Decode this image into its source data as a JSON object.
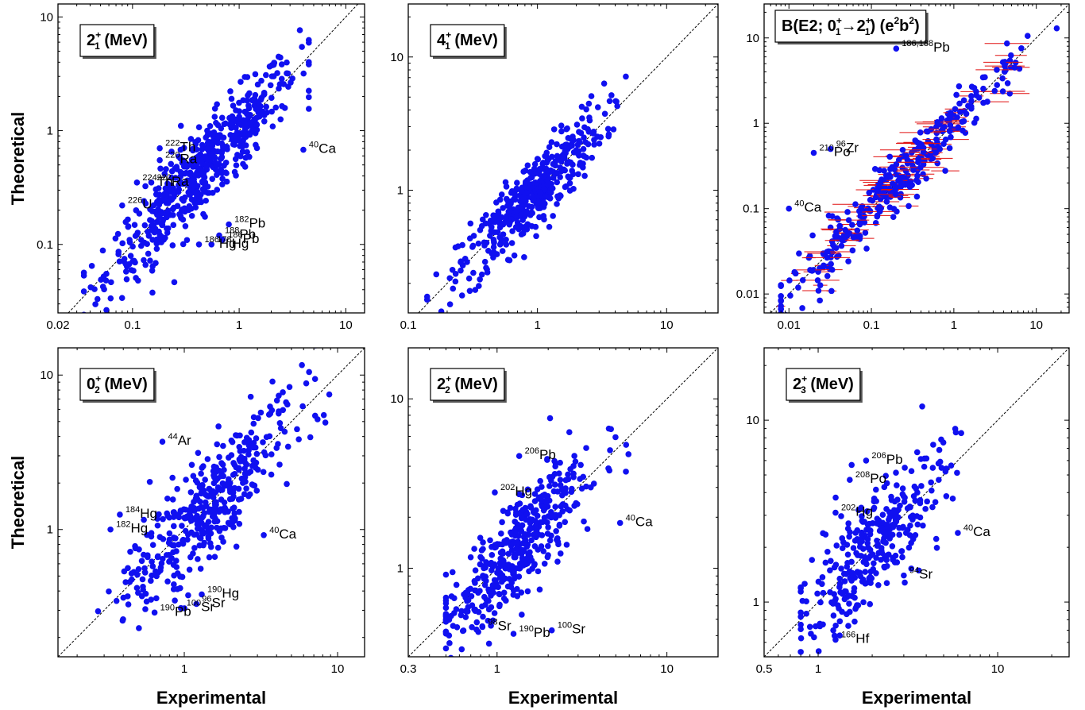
{
  "colors": {
    "point": "#1010f0",
    "error_bar": "#e01010",
    "diagonal": "#000000"
  },
  "axes": {
    "xlabel": "Experimental",
    "ylabel": "Theoretical"
  },
  "chart_data": [
    {
      "id": "p21",
      "type": "scatter",
      "title": "2_1^+ (MeV)",
      "title_parts": {
        "main": "2",
        "sup": "+",
        "sub": "1",
        "rest": " (MeV)"
      },
      "xscale": "log",
      "yscale": "log",
      "xlim": [
        0.02,
        15
      ],
      "ylim": [
        0.025,
        13
      ],
      "xticks": [
        0.02,
        0.1,
        1,
        10
      ],
      "xtick_labels": [
        "0.02",
        "0.1",
        "1",
        "10"
      ],
      "yticks": [
        0.1,
        1,
        10
      ],
      "ytick_labels": [
        "0.1",
        "1",
        "10"
      ],
      "diagonal": true,
      "annotations": [
        {
          "text": "Th",
          "mass": "222",
          "x": 0.18,
          "y": 0.7
        },
        {
          "text": "Ra",
          "mass": "220",
          "x": 0.18,
          "y": 0.55
        },
        {
          "text": "Ra",
          "mass": "222",
          "x": 0.15,
          "y": 0.35
        },
        {
          "text": "Th",
          "mass": "224",
          "x": 0.11,
          "y": 0.35
        },
        {
          "text": "U",
          "mass": "226",
          "x": 0.08,
          "y": 0.22
        },
        {
          "text": "Ca",
          "mass": "40",
          "x": 4.0,
          "y": 0.68
        },
        {
          "text": "Pb",
          "mass": "182",
          "x": 0.8,
          "y": 0.15
        },
        {
          "text": "Pb",
          "mass": "188",
          "x": 0.65,
          "y": 0.12
        },
        {
          "text": "Pb",
          "mass": "186",
          "x": 0.7,
          "y": 0.11
        },
        {
          "text": "Hg",
          "mass": "178",
          "x": 0.55,
          "y": 0.1
        },
        {
          "text": "Hg",
          "mass": "186",
          "x": 0.42,
          "y": 0.1
        }
      ]
    },
    {
      "id": "p41",
      "type": "scatter",
      "title": "4_1^+ (MeV)",
      "title_parts": {
        "main": "4",
        "sup": "+",
        "sub": "1",
        "rest": " (MeV)"
      },
      "xscale": "log",
      "yscale": "log",
      "xlim": [
        0.1,
        25
      ],
      "ylim": [
        0.12,
        25
      ],
      "xticks": [
        0.1,
        1,
        10
      ],
      "xtick_labels": [
        "0.1",
        "1",
        "10"
      ],
      "yticks": [
        1,
        10
      ],
      "ytick_labels": [
        "1",
        "10"
      ],
      "diagonal": true,
      "annotations": []
    },
    {
      "id": "pbe2",
      "type": "scatter",
      "title": "B(E2; 0_1^+→2_1^+) (e^2b^2)",
      "title_parts": {
        "main": "B(E2; 0",
        "sup": "+",
        "sub": "1",
        "arrow": "→2",
        "sup2": "+",
        "sub2": "1",
        "rest": ") (e",
        "sup3": "2",
        "rest2": "b",
        "sup4": "2",
        "rest3": ")"
      },
      "xscale": "log",
      "yscale": "log",
      "xlim": [
        0.005,
        25
      ],
      "ylim": [
        0.006,
        25
      ],
      "xticks": [
        0.01,
        0.1,
        1,
        10
      ],
      "xtick_labels": [
        "0.01",
        "0.1",
        "1",
        "10"
      ],
      "yticks": [
        0.01,
        0.1,
        1,
        10
      ],
      "ytick_labels": [
        "0.01",
        "0.1",
        "1",
        "10"
      ],
      "diagonal": true,
      "error_bars": true,
      "annotations": [
        {
          "text": "Pb",
          "mass": "186,188",
          "x": 0.2,
          "y": 7.5
        },
        {
          "text": "Zr",
          "mass": "96",
          "x": 0.032,
          "y": 0.5
        },
        {
          "text": "Po",
          "mass": "210",
          "x": 0.02,
          "y": 0.45
        },
        {
          "text": "Ca",
          "mass": "40",
          "x": 0.01,
          "y": 0.1
        }
      ]
    },
    {
      "id": "p02",
      "type": "scatter",
      "title": "0_2^+ (MeV)",
      "title_parts": {
        "main": "0",
        "sup": "+",
        "sub": "2",
        "rest": " (MeV)"
      },
      "xscale": "log",
      "yscale": "log",
      "xlim": [
        0.15,
        15
      ],
      "ylim": [
        0.15,
        15
      ],
      "xticks": [
        1,
        10
      ],
      "xtick_labels": [
        "1",
        "10"
      ],
      "yticks": [
        1,
        10
      ],
      "ytick_labels": [
        "1",
        "10"
      ],
      "diagonal": true,
      "annotations": [
        {
          "text": "Ar",
          "mass": "44",
          "x": 0.72,
          "y": 3.7
        },
        {
          "text": "Hg",
          "mass": "184",
          "x": 0.38,
          "y": 1.25
        },
        {
          "text": "Hg",
          "mass": "182",
          "x": 0.33,
          "y": 1.0
        },
        {
          "text": "Ca",
          "mass": "40",
          "x": 3.3,
          "y": 0.92
        },
        {
          "text": "Hg",
          "mass": "190",
          "x": 1.3,
          "y": 0.38
        },
        {
          "text": "Sr",
          "mass": "96",
          "x": 1.2,
          "y": 0.33
        },
        {
          "text": "Sr",
          "mass": "100",
          "x": 0.95,
          "y": 0.31
        },
        {
          "text": "Pb",
          "mass": "190",
          "x": 0.64,
          "y": 0.29
        }
      ]
    },
    {
      "id": "p22",
      "type": "scatter",
      "title": "2_2^+ (MeV)",
      "title_parts": {
        "main": "2",
        "sup": "+",
        "sub": "2",
        "rest": " (MeV)"
      },
      "xscale": "log",
      "yscale": "log",
      "xlim": [
        0.3,
        20
      ],
      "ylim": [
        0.3,
        20
      ],
      "xticks": [
        0.3,
        1,
        10
      ],
      "xtick_labels": [
        "0.3",
        "1",
        "10"
      ],
      "yticks": [
        1,
        10
      ],
      "ytick_labels": [
        "1",
        "10"
      ],
      "diagonal": true,
      "annotations": [
        {
          "text": "Pb",
          "mass": "206",
          "x": 1.35,
          "y": 4.6
        },
        {
          "text": "Hg",
          "mass": "202",
          "x": 0.97,
          "y": 2.8
        },
        {
          "text": "Ca",
          "mass": "40",
          "x": 5.3,
          "y": 1.85
        },
        {
          "text": "Sr",
          "mass": "98",
          "x": 0.82,
          "y": 0.45
        },
        {
          "text": "Pb",
          "mass": "190",
          "x": 1.25,
          "y": 0.41
        },
        {
          "text": "Sr",
          "mass": "100",
          "x": 2.1,
          "y": 0.43
        }
      ]
    },
    {
      "id": "p23",
      "type": "scatter",
      "title": "2_3^+ (MeV)",
      "title_parts": {
        "main": "2",
        "sup": "+",
        "sub": "3",
        "rest": " (MeV)"
      },
      "xscale": "log",
      "yscale": "log",
      "xlim": [
        0.5,
        25
      ],
      "ylim": [
        0.5,
        25
      ],
      "xticks": [
        0.5,
        1,
        10
      ],
      "xtick_labels": [
        "0.5",
        "1",
        "10"
      ],
      "yticks": [
        1,
        10
      ],
      "ytick_labels": [
        "1",
        "10"
      ],
      "diagonal": true,
      "annotations": [
        {
          "text": "Pb",
          "mass": "206",
          "x": 1.85,
          "y": 6.0
        },
        {
          "text": "Po",
          "mass": "208",
          "x": 1.5,
          "y": 4.7
        },
        {
          "text": "Hg",
          "mass": "202",
          "x": 1.25,
          "y": 3.1
        },
        {
          "text": "Ca",
          "mass": "40",
          "x": 6.0,
          "y": 2.4
        },
        {
          "text": "Sr",
          "mass": "94",
          "x": 3.0,
          "y": 1.4
        },
        {
          "text": "Hf",
          "mass": "166",
          "x": 1.25,
          "y": 0.62
        }
      ]
    }
  ]
}
